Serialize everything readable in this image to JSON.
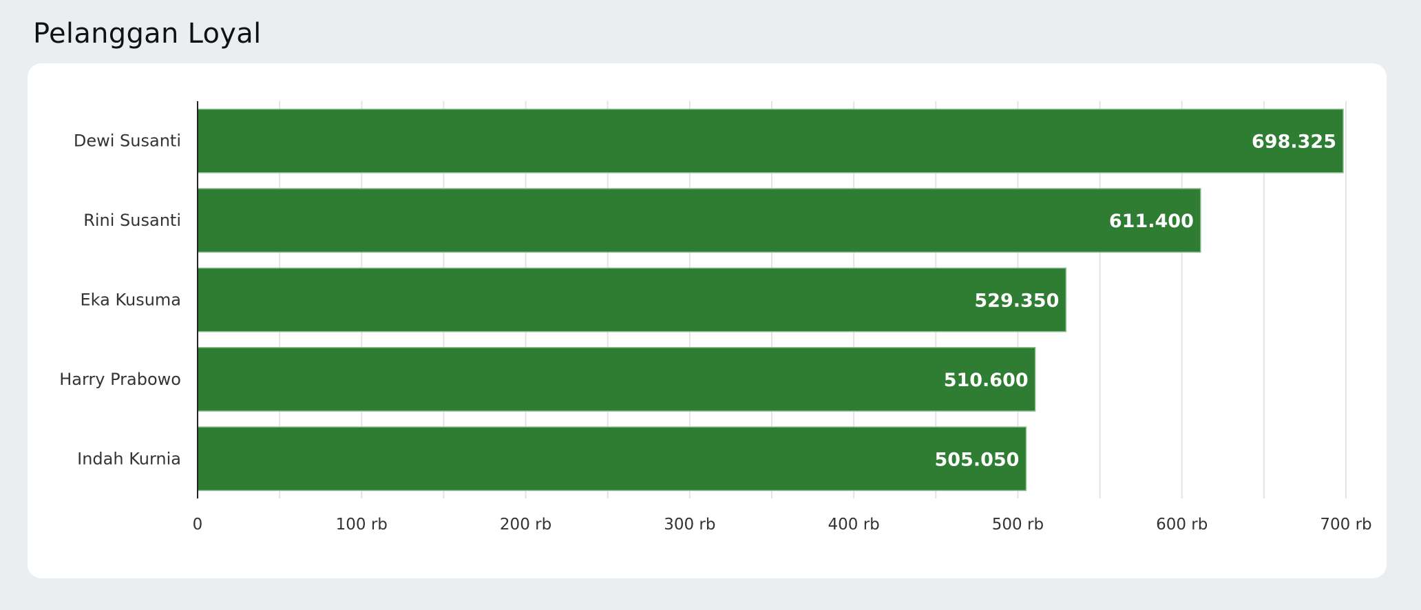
{
  "header": {
    "title": "Pelanggan Loyal"
  },
  "chart_data": {
    "type": "bar",
    "orientation": "horizontal",
    "title": "Pelanggan Loyal",
    "categories": [
      "Dewi Susanti",
      "Rini Susanti",
      "Eka Kusuma",
      "Harry Prabowo",
      "Indah Kurnia"
    ],
    "values": [
      698325,
      611400,
      529350,
      510600,
      505050
    ],
    "data_labels": [
      "698.325",
      "611.400",
      "529.350",
      "510.600",
      "505.050"
    ],
    "xlim": [
      0,
      700000
    ],
    "x_ticks": [
      0,
      100000,
      200000,
      300000,
      400000,
      500000,
      600000,
      700000
    ],
    "x_tick_labels": [
      "0",
      "100 rb",
      "200 rb",
      "300 rb",
      "400 rb",
      "500 rb",
      "600 rb",
      "700 rb"
    ],
    "grid": true,
    "legend": "none",
    "bar_color": "#2e7d32"
  }
}
